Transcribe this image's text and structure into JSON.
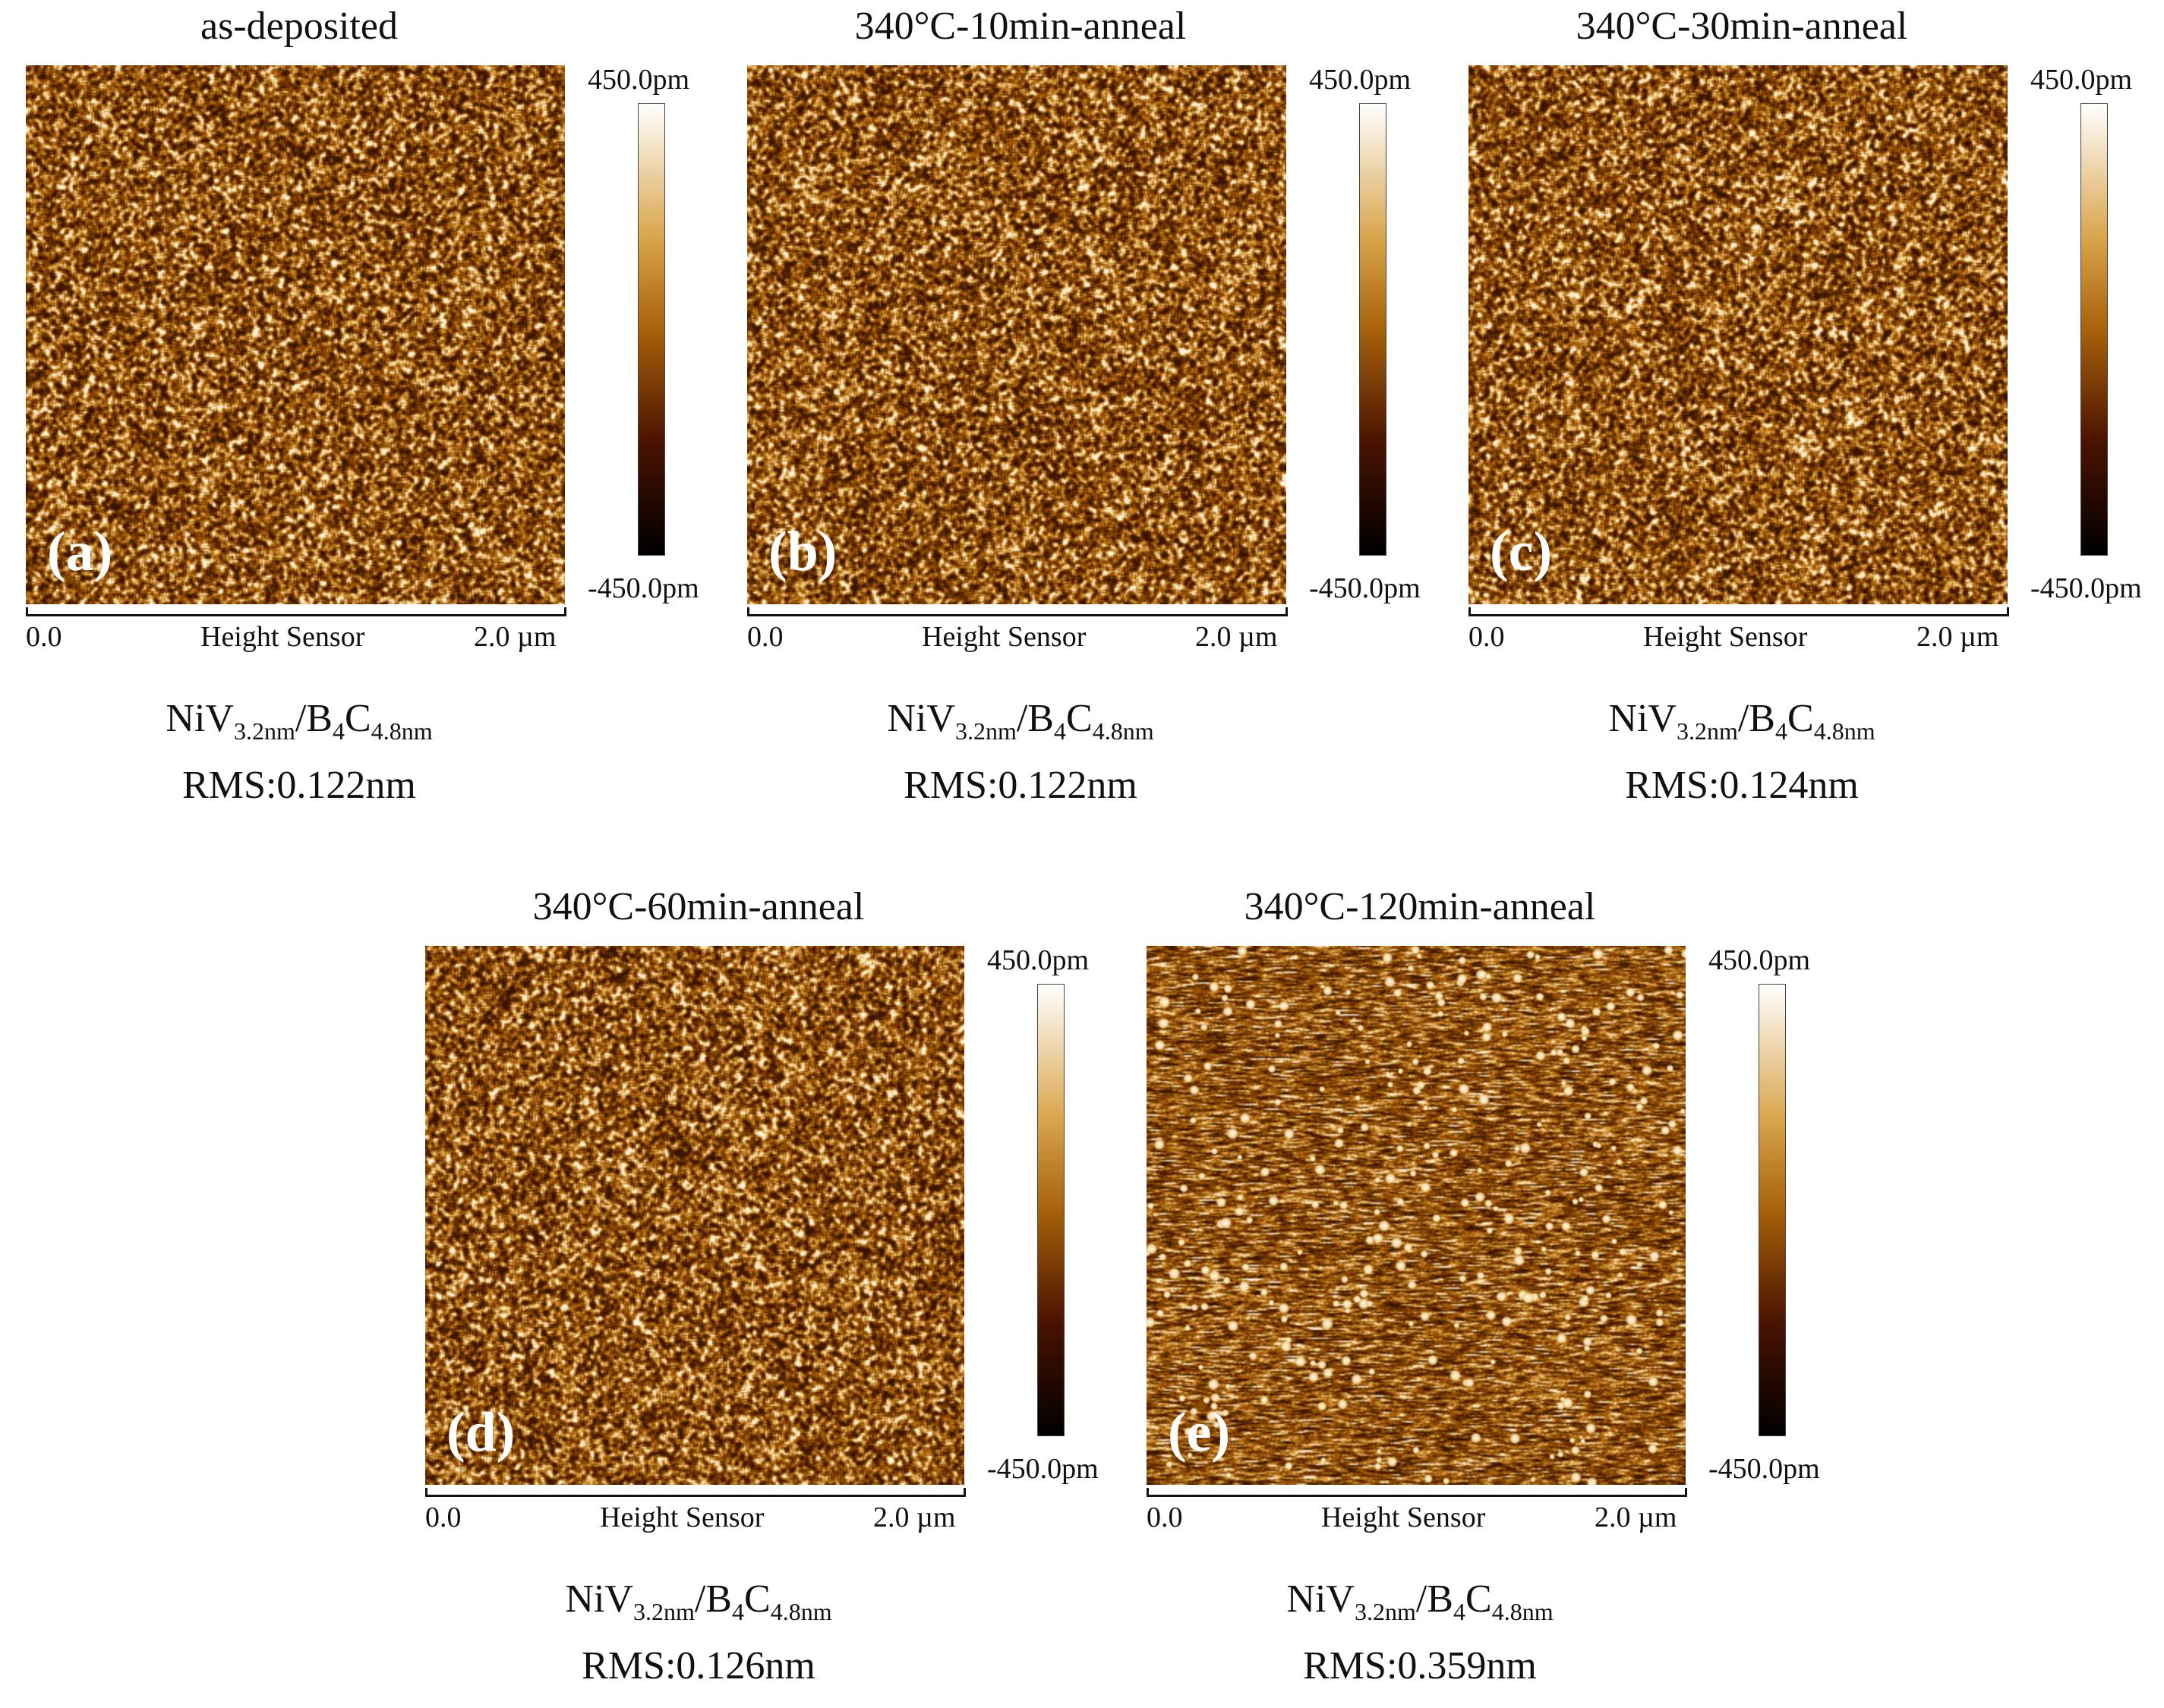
{
  "colorbar": {
    "max_label": "450.0pm",
    "min_label": "-450.0pm"
  },
  "scale_axis": {
    "left_label": "0.0",
    "center_label": "Height Sensor",
    "right_label": "2.0 µm"
  },
  "formula": {
    "a": "NiV",
    "a_sub": "3.2nm",
    "sep": "/B",
    "b_sub": "4",
    "c": "C",
    "c_sub": "4.8nm"
  },
  "panels": [
    {
      "title": "as-deposited",
      "label": "(a)",
      "rms": "RMS:0.122nm",
      "morphology": "fine-grain"
    },
    {
      "title": "340°C-10min-anneal",
      "label": "(b)",
      "rms": "RMS:0.122nm",
      "morphology": "fine-grain"
    },
    {
      "title": "340°C-30min-anneal",
      "label": "(c)",
      "rms": "RMS:0.124nm",
      "morphology": "fine-grain"
    },
    {
      "title": "340°C-60min-anneal",
      "label": "(d)",
      "rms": "RMS:0.126nm",
      "morphology": "fine-grain"
    },
    {
      "title": "340°C-120min-anneal",
      "label": "(e)",
      "rms": "RMS:0.359nm",
      "morphology": "streaks-with-particles"
    }
  ],
  "colors": {
    "surface_dark": "#3a1400",
    "surface_mid": "#9a5200",
    "surface_light": "#e8b45a",
    "particle": "#fff4d8"
  }
}
